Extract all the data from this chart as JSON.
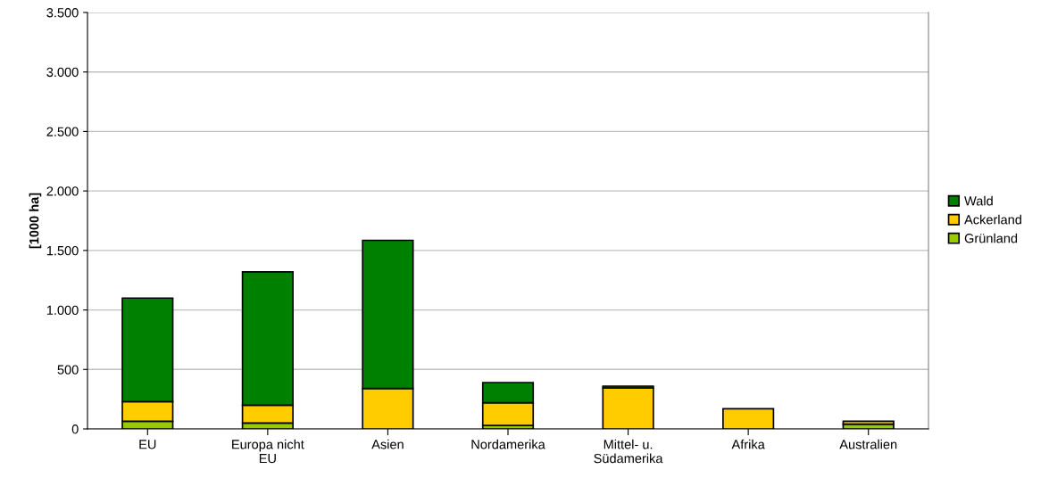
{
  "chart_data": {
    "type": "bar",
    "stacked": true,
    "ylabel": "[1000 ha]",
    "categories": [
      "EU",
      "Europa nicht\nEU",
      "Asien",
      "Nordamerika",
      "Mittel- u.\nSüdamerika",
      "Afrika",
      "Australien"
    ],
    "series": [
      {
        "name": "Grünland",
        "color": "#99cc00",
        "values": [
          65,
          50,
          null,
          30,
          0,
          0,
          40
        ]
      },
      {
        "name": "Ackerland",
        "color": "#ffcc00",
        "values": [
          165,
          150,
          340,
          190,
          345,
          170,
          25
        ]
      },
      {
        "name": "Wald",
        "color": "#008000",
        "values": [
          870,
          1120,
          1245,
          170,
          15,
          0,
          0
        ]
      }
    ],
    "ylim": [
      0,
      3500
    ],
    "yticks": [
      {
        "value": 0,
        "label": "0"
      },
      {
        "value": 500,
        "label": "500"
      },
      {
        "value": 1000,
        "label": "1.000"
      },
      {
        "value": 1500,
        "label": "1.500"
      },
      {
        "value": 2000,
        "label": "2.000"
      },
      {
        "value": 2500,
        "label": "2.500"
      },
      {
        "value": 3000,
        "label": "3.000"
      },
      {
        "value": 3500,
        "label": "3.500"
      }
    ],
    "grid": "y",
    "legend": "right"
  }
}
